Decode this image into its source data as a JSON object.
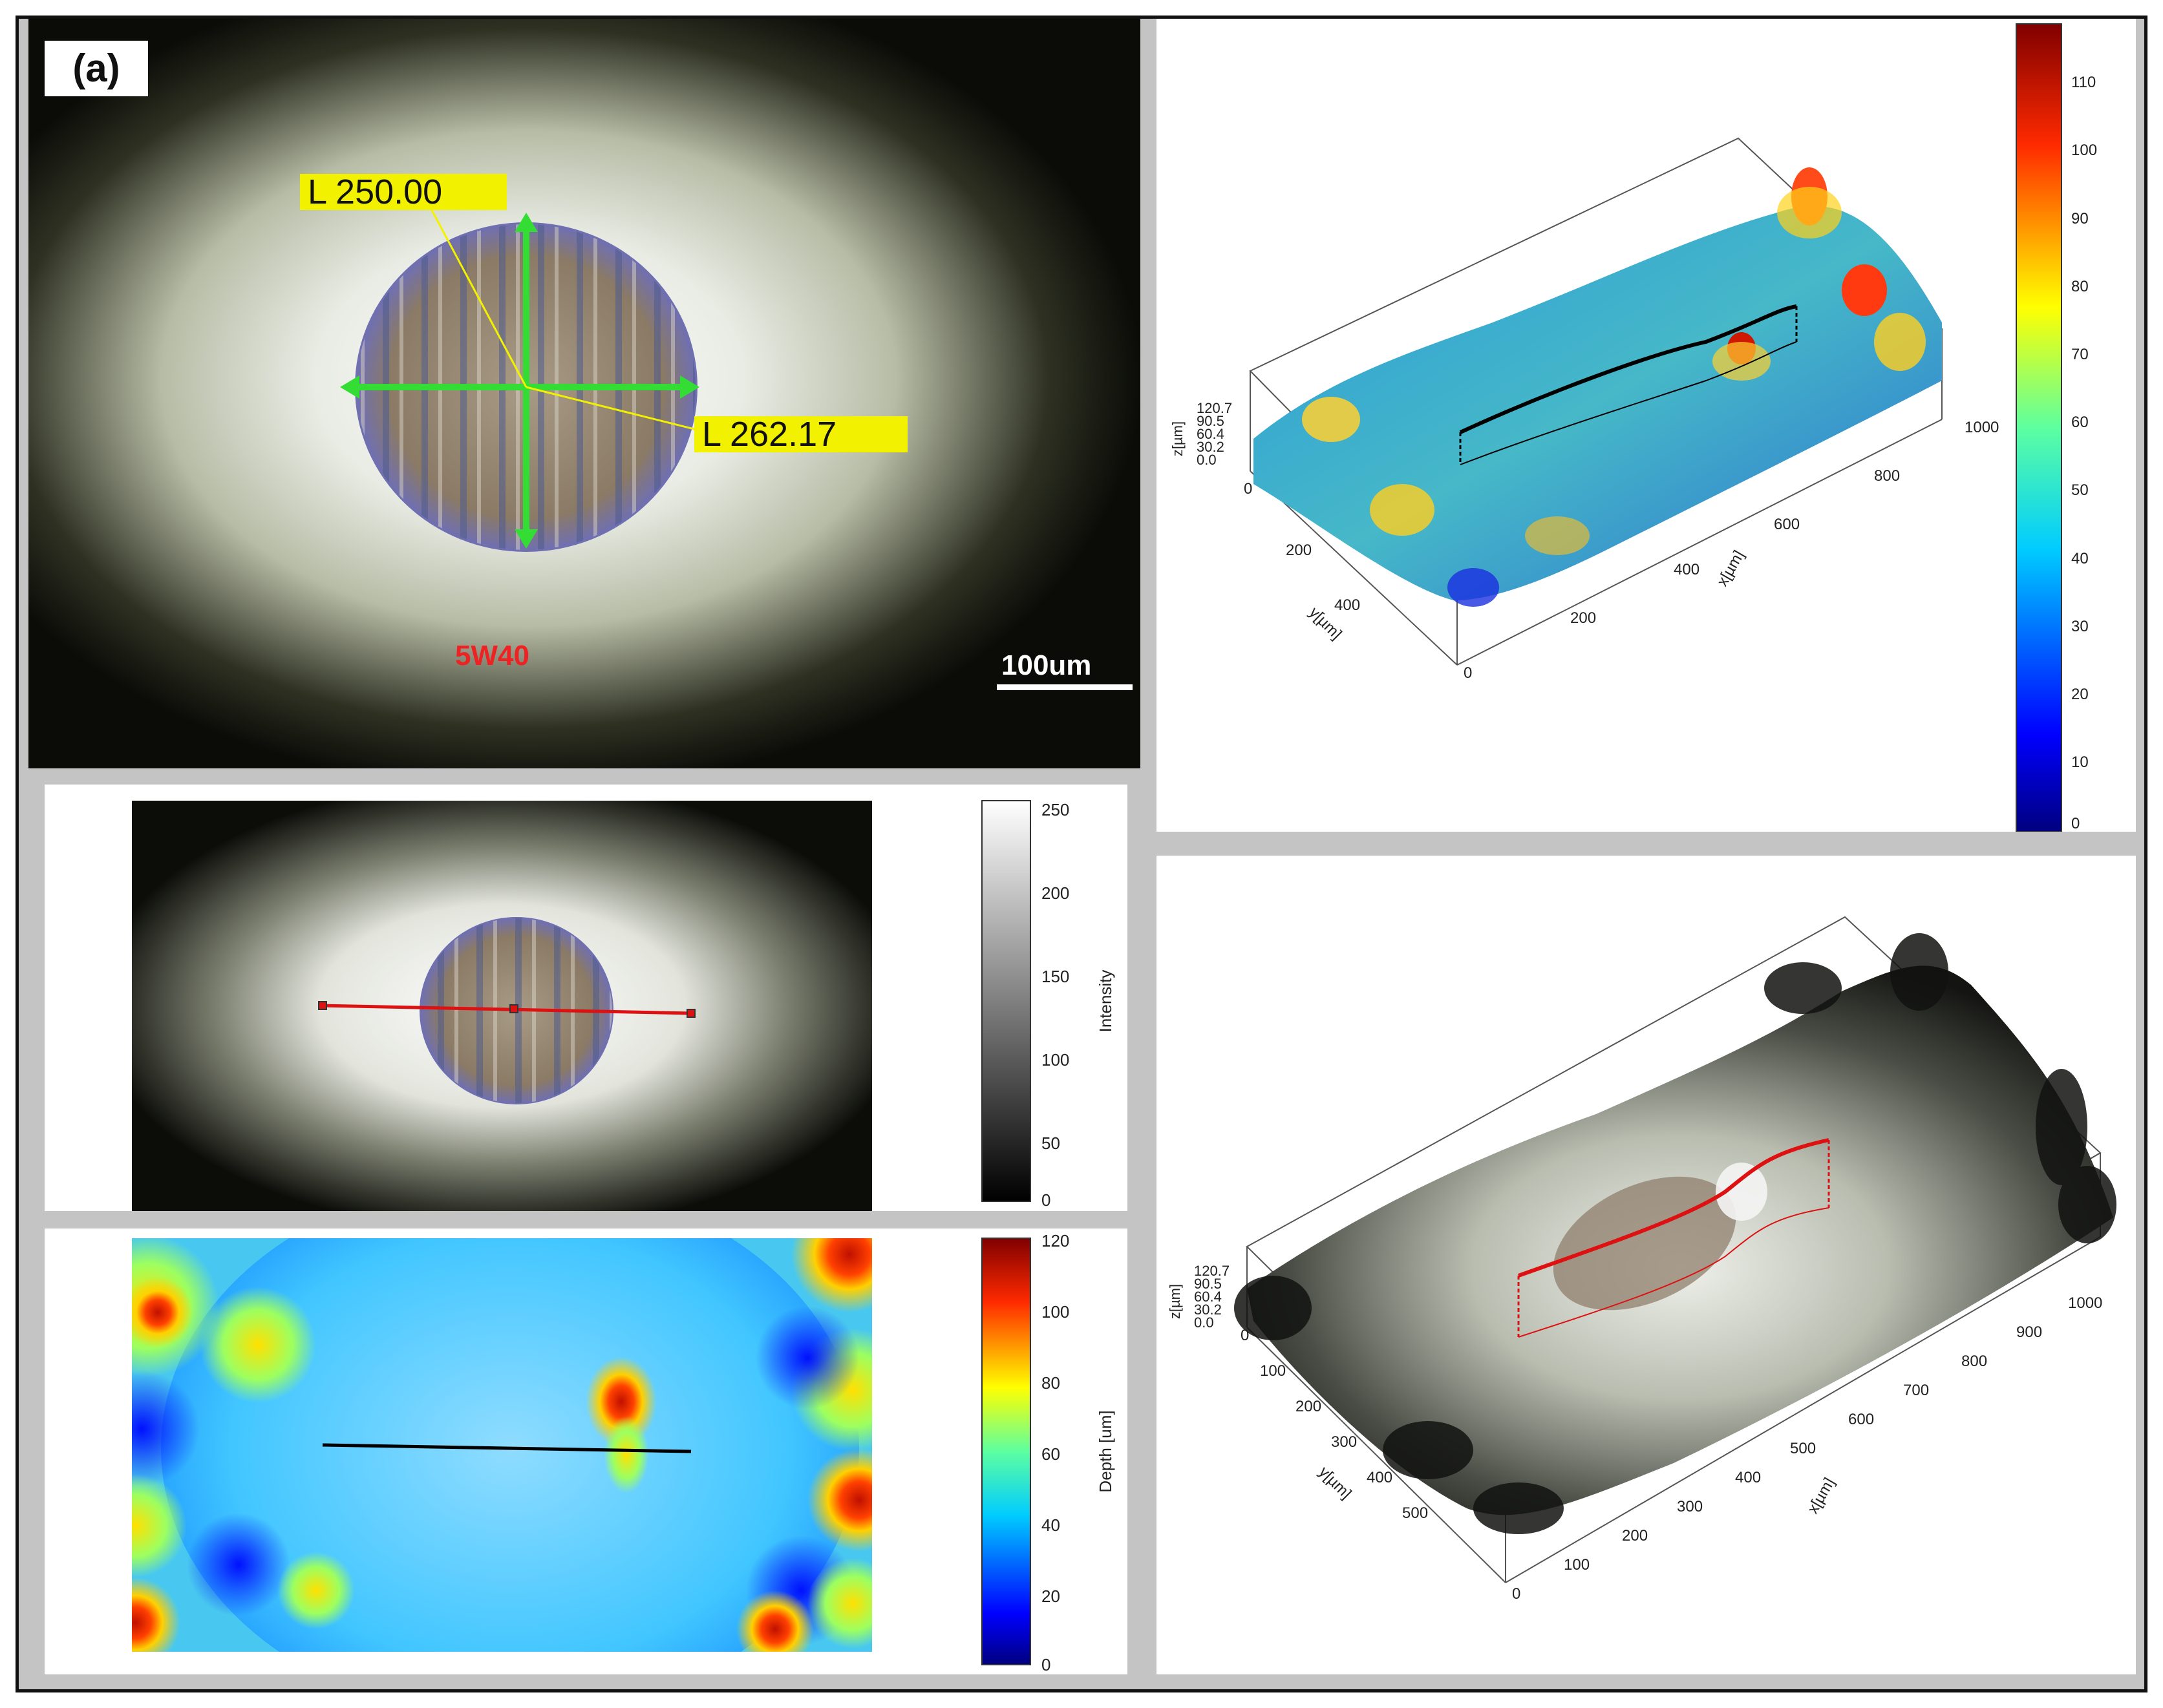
{
  "panel_label": "(a)",
  "micrograph": {
    "measure_vertical": "L 250.00",
    "measure_horizontal": "L 262.17",
    "sample": "5W40",
    "scale_bar": "100um"
  },
  "intensity_map": {
    "colorbar_label": "Intensity",
    "ticks": [
      "250",
      "200",
      "150",
      "100",
      "50",
      "0"
    ]
  },
  "depth_map": {
    "colorbar_label": "Depth [um]",
    "ticks": [
      "120",
      "100",
      "80",
      "60",
      "40",
      "20",
      "0"
    ]
  },
  "surface_3d_color": {
    "z_label": "z[µm]",
    "y_label": "y[µm]",
    "x_label": "x[µm]",
    "z_ticks": [
      "120.7",
      "90.5",
      "60.4",
      "30.2",
      "0.0"
    ],
    "y_ticks": [
      "0",
      "200",
      "400"
    ],
    "x_ticks": [
      "0",
      "200",
      "400",
      "600",
      "800",
      "1000"
    ],
    "colorbar_ticks": [
      "110",
      "100",
      "90",
      "80",
      "70",
      "60",
      "50",
      "40",
      "30",
      "20",
      "10",
      "0"
    ]
  },
  "surface_3d_texture": {
    "z_label": "z[µm]",
    "y_label": "y[µm]",
    "x_label": "x[µm]",
    "z_ticks": [
      "120.7",
      "90.5",
      "60.4",
      "30.2",
      "0.0"
    ],
    "y_ticks": [
      "0",
      "100",
      "200",
      "300",
      "400",
      "500"
    ],
    "x_ticks": [
      "0",
      "100",
      "200",
      "300",
      "400",
      "500",
      "600",
      "700",
      "800",
      "900",
      "1000"
    ]
  },
  "colors": {
    "measure_line": "#33dd33",
    "measure_label_bg": "#f2f200",
    "sample_text": "#ee2222",
    "profile_line_red": "#dd1111"
  }
}
